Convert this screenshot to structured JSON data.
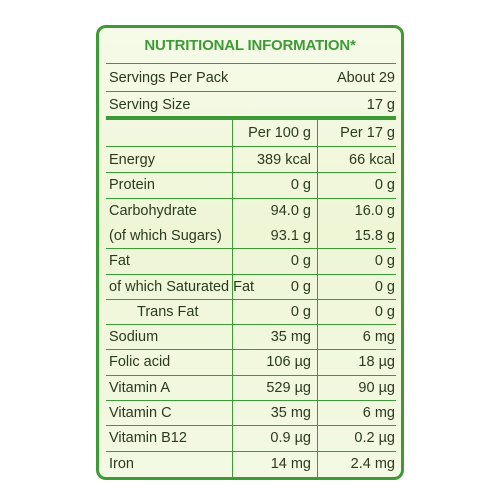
{
  "panel": {
    "title": "NUTRITIONAL INFORMATION*",
    "servings_per_pack_label": "Servings Per Pack",
    "servings_per_pack_value": "About 29",
    "serving_size_label": "Serving Size",
    "serving_size_value": "17 g",
    "col_per100": "Per 100 g",
    "col_perserving": "Per 17 g",
    "rows": [
      {
        "label": "Energy",
        "per100": "389 kcal",
        "perserving": "66 kcal"
      },
      {
        "label": "Protein",
        "per100": "0 g",
        "perserving": "0 g"
      },
      {
        "label": "Carbohydrate",
        "per100": "94.0 g",
        "perserving": "16.0 g"
      },
      {
        "label": "(of which Sugars)",
        "per100": "93.1 g",
        "perserving": "15.8 g"
      },
      {
        "label": "Fat",
        "per100": "0 g",
        "perserving": "0 g"
      },
      {
        "label": " of which Saturated Fat",
        "per100": "0 g",
        "perserving": "0 g"
      },
      {
        "label": "Trans Fat",
        "per100": "0 g",
        "perserving": "0 g"
      },
      {
        "label": "Sodium",
        "per100": "35 mg",
        "perserving": "6 mg"
      },
      {
        "label": "Folic acid",
        "per100": "106 µg",
        "perserving": "18 µg"
      },
      {
        "label": "Vitamin A",
        "per100": "529 µg",
        "perserving": "90 µg"
      },
      {
        "label": "Vitamin C",
        "per100": "35 mg",
        "perserving": "6 mg"
      },
      {
        "label": "Vitamin B12",
        "per100": "0.9 µg",
        "perserving": "0.2 µg"
      },
      {
        "label": "Iron",
        "per100": "14 mg",
        "perserving": "2.4 mg"
      }
    ]
  },
  "colors": {
    "accent_green": "#3e9a36",
    "text": "#2b3a1d",
    "panel_bg": "#f1f8dd"
  }
}
